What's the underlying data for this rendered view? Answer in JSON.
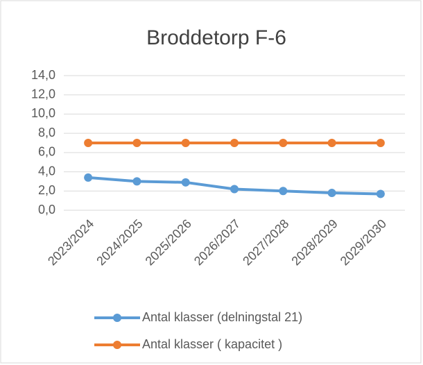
{
  "chart_data": {
    "type": "line",
    "title": "Broddetorp F-6",
    "categories": [
      "2023/2024",
      "2024/2025",
      "2025/2026",
      "2026/2027",
      "2027/2028",
      "2028/2029",
      "2029/2030"
    ],
    "series": [
      {
        "name": "Antal klasser (delningstal 21)",
        "color": "#5b9bd5",
        "values": [
          3.4,
          3.0,
          2.9,
          2.2,
          2.0,
          1.8,
          1.7
        ]
      },
      {
        "name": "Antal klasser ( kapacitet )",
        "color": "#ed7d31",
        "values": [
          7.0,
          7.0,
          7.0,
          7.0,
          7.0,
          7.0,
          7.0
        ]
      }
    ],
    "ylim": [
      0,
      14
    ],
    "yticks": [
      {
        "value": 0,
        "label": "0,0"
      },
      {
        "value": 2,
        "label": "2,0"
      },
      {
        "value": 4,
        "label": "4,0"
      },
      {
        "value": 6,
        "label": "6,0"
      },
      {
        "value": 8,
        "label": "8,0"
      },
      {
        "value": 10,
        "label": "10,0"
      },
      {
        "value": 12,
        "label": "12,0"
      },
      {
        "value": 14,
        "label": "14,0"
      }
    ],
    "grid": true,
    "legend": "bottom"
  }
}
